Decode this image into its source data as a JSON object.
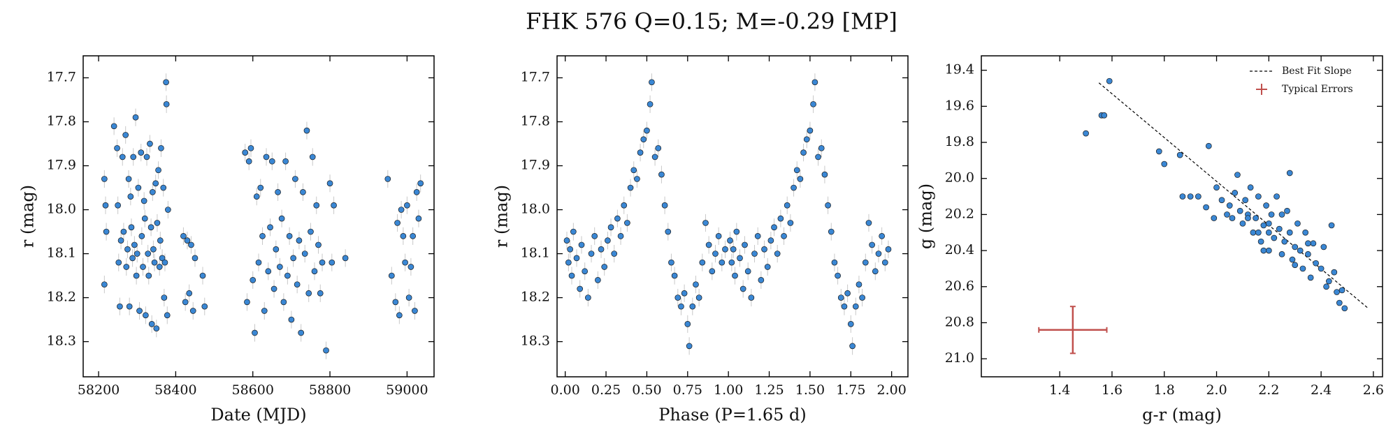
{
  "title": "FHK 576  Q=0.15; M=-0.29 [MP]",
  "chart_data": [
    {
      "type": "scatter",
      "xlabel": "Date (MJD)",
      "ylabel": "r (mag)",
      "color": "#3a87d4",
      "y_inverted": true,
      "yerr": 0.02,
      "error_color": "#c8c8c8",
      "xlim": [
        58160,
        59070
      ],
      "ylim": [
        17.65,
        18.38
      ],
      "xticks": [
        58200,
        58400,
        58600,
        58800,
        59000
      ],
      "yticks": [
        17.7,
        17.8,
        17.9,
        {
          "value": 18.0,
          "label": "18.0"
        },
        18.1,
        18.2,
        18.3
      ],
      "x": [
        58215,
        58218,
        58220,
        58215,
        58240,
        58248,
        58250,
        58252,
        58255,
        58258,
        58262,
        58265,
        58270,
        58272,
        58275,
        58278,
        58280,
        58283,
        58285,
        58288,
        58290,
        58293,
        58296,
        58298,
        58300,
        58303,
        58306,
        58310,
        58312,
        58315,
        58318,
        58320,
        58322,
        58325,
        58328,
        58330,
        58333,
        58336,
        58338,
        58340,
        58342,
        58345,
        58348,
        58350,
        58352,
        58355,
        58358,
        58360,
        58362,
        58365,
        58368,
        58370,
        58372,
        58375,
        58376,
        58378,
        58380,
        58420,
        58425,
        58430,
        58435,
        58440,
        58445,
        58450,
        58470,
        58475,
        58580,
        58585,
        58590,
        58595,
        58600,
        58605,
        58610,
        58615,
        58620,
        58625,
        58630,
        58635,
        58640,
        58645,
        58650,
        58655,
        58660,
        58665,
        58670,
        58675,
        58680,
        58685,
        58690,
        58695,
        58700,
        58705,
        58710,
        58715,
        58720,
        58725,
        58730,
        58735,
        58740,
        58745,
        58750,
        58755,
        58760,
        58765,
        58770,
        58775,
        58780,
        58790,
        58800,
        58805,
        58810,
        58840,
        58950,
        58960,
        58970,
        58975,
        58980,
        58985,
        58990,
        58995,
        59000,
        59005,
        59010,
        59015,
        59020,
        59025,
        59030,
        59035
      ],
      "values": [
        17.93,
        17.99,
        18.05,
        18.17,
        17.81,
        17.86,
        17.99,
        18.12,
        18.22,
        18.07,
        17.88,
        18.05,
        17.83,
        18.13,
        18.09,
        17.93,
        18.22,
        17.97,
        18.04,
        18.11,
        17.88,
        18.08,
        17.79,
        18.15,
        18.1,
        17.95,
        18.23,
        17.87,
        18.06,
        18.13,
        17.98,
        18.02,
        18.24,
        17.88,
        18.1,
        18.15,
        17.85,
        18.04,
        18.26,
        17.96,
        18.09,
        18.12,
        17.94,
        18.27,
        18.03,
        17.91,
        18.13,
        18.07,
        17.86,
        18.11,
        17.95,
        18.2,
        18.12,
        17.71,
        17.76,
        18.24,
        18.0,
        18.06,
        18.21,
        18.07,
        18.19,
        18.08,
        18.23,
        18.11,
        18.15,
        18.22,
        17.87,
        18.21,
        17.89,
        17.86,
        18.16,
        18.28,
        17.97,
        18.12,
        17.95,
        18.06,
        18.23,
        17.88,
        18.14,
        18.04,
        17.89,
        18.18,
        18.09,
        17.96,
        18.13,
        18.02,
        18.21,
        17.89,
        18.15,
        18.06,
        18.25,
        18.11,
        17.93,
        18.17,
        18.07,
        18.28,
        17.96,
        18.1,
        17.82,
        18.19,
        18.05,
        17.88,
        18.14,
        17.99,
        18.08,
        18.19,
        18.12,
        18.32,
        17.94,
        18.12,
        17.99,
        18.11,
        17.93,
        18.15,
        18.21,
        18.03,
        18.24,
        18.0,
        18.06,
        18.12,
        17.99,
        18.2,
        18.13,
        18.06,
        18.23,
        17.96,
        18.02,
        17.94
      ]
    },
    {
      "type": "scatter",
      "xlabel": "Phase (P=1.65 d)",
      "ylabel": "r (mag)",
      "color": "#3a87d4",
      "y_inverted": true,
      "yerr": 0.02,
      "error_color": "#c8c8c8",
      "xlim": [
        -0.05,
        2.1
      ],
      "ylim": [
        17.65,
        18.38
      ],
      "xticks": [
        {
          "value": 0,
          "label": "0.00"
        },
        0.25,
        {
          "value": 0.5,
          "label": "0.50"
        },
        0.75,
        {
          "value": 1,
          "label": "1.00"
        },
        1.25,
        {
          "value": 1.5,
          "label": "1.50"
        },
        1.75,
        {
          "value": 2,
          "label": "2.00"
        }
      ],
      "yticks": [
        17.7,
        17.8,
        17.9,
        {
          "value": 18.0,
          "label": "18.0"
        },
        18.1,
        18.2,
        18.3
      ],
      "x": [
        0.01,
        0.02,
        0.03,
        0.04,
        0.05,
        0.07,
        0.09,
        0.1,
        0.12,
        0.14,
        0.16,
        0.18,
        0.2,
        0.22,
        0.24,
        0.26,
        0.28,
        0.3,
        0.32,
        0.34,
        0.36,
        0.38,
        0.4,
        0.42,
        0.44,
        0.46,
        0.48,
        0.5,
        0.52,
        0.53,
        0.55,
        0.57,
        0.59,
        0.61,
        0.63,
        0.65,
        0.67,
        0.69,
        0.71,
        0.73,
        0.75,
        0.76,
        0.78,
        0.8,
        0.82,
        0.84,
        0.86,
        0.88,
        0.9,
        0.92,
        0.94,
        0.96,
        0.98,
        1.01,
        1.02,
        1.03,
        1.04,
        1.05,
        1.07,
        1.09,
        1.1,
        1.12,
        1.14,
        1.16,
        1.18,
        1.2,
        1.22,
        1.24,
        1.26,
        1.28,
        1.3,
        1.32,
        1.34,
        1.36,
        1.38,
        1.4,
        1.42,
        1.44,
        1.46,
        1.48,
        1.5,
        1.52,
        1.53,
        1.55,
        1.57,
        1.59,
        1.61,
        1.63,
        1.65,
        1.67,
        1.69,
        1.71,
        1.73,
        1.75,
        1.76,
        1.78,
        1.8,
        1.82,
        1.84,
        1.86,
        1.88,
        1.9,
        1.92,
        1.94,
        1.96,
        1.98
      ],
      "values": [
        18.07,
        18.12,
        18.09,
        18.15,
        18.05,
        18.11,
        18.18,
        18.08,
        18.14,
        18.2,
        18.1,
        18.06,
        18.16,
        18.09,
        18.13,
        18.07,
        18.04,
        18.1,
        18.02,
        18.06,
        17.99,
        18.03,
        17.95,
        17.91,
        17.93,
        17.87,
        17.84,
        17.82,
        17.76,
        17.71,
        17.88,
        17.86,
        17.92,
        17.99,
        18.05,
        18.12,
        18.15,
        18.2,
        18.22,
        18.19,
        18.26,
        18.31,
        18.22,
        18.17,
        18.2,
        18.12,
        18.03,
        18.08,
        18.14,
        18.1,
        18.06,
        18.12,
        18.09,
        18.07,
        18.12,
        18.09,
        18.15,
        18.05,
        18.11,
        18.18,
        18.08,
        18.14,
        18.2,
        18.1,
        18.06,
        18.16,
        18.09,
        18.13,
        18.07,
        18.04,
        18.1,
        18.02,
        18.06,
        17.99,
        18.03,
        17.95,
        17.91,
        17.93,
        17.87,
        17.84,
        17.82,
        17.76,
        17.71,
        17.88,
        17.86,
        17.92,
        17.99,
        18.05,
        18.12,
        18.15,
        18.2,
        18.22,
        18.19,
        18.26,
        18.31,
        18.22,
        18.17,
        18.2,
        18.12,
        18.03,
        18.08,
        18.14,
        18.1,
        18.06,
        18.12,
        18.09
      ]
    },
    {
      "type": "scatter",
      "xlabel": "g-r (mag)",
      "ylabel": "g (mag)",
      "color": "#3a87d4",
      "y_inverted": true,
      "legend": "upper right",
      "xlim": [
        1.1,
        2.635
      ],
      "ylim": [
        19.32,
        21.1
      ],
      "xticks": [
        1.4,
        1.6,
        1.8,
        {
          "value": 2.0,
          "label": "2.0"
        },
        2.2,
        2.4,
        2.6
      ],
      "yticks": [
        19.4,
        19.6,
        19.8,
        {
          "value": 20.0,
          "label": "20.0"
        },
        20.2,
        20.4,
        20.6,
        20.8,
        {
          "value": 21.0,
          "label": "21.0"
        }
      ],
      "x": [
        1.5,
        1.56,
        1.57,
        1.59,
        1.78,
        1.8,
        1.86,
        1.87,
        1.9,
        1.93,
        1.96,
        1.97,
        1.99,
        2.0,
        2.02,
        2.04,
        2.05,
        2.06,
        2.07,
        2.08,
        2.09,
        2.1,
        2.11,
        2.12,
        2.13,
        2.14,
        2.15,
        2.16,
        2.17,
        2.18,
        2.19,
        2.2,
        2.2,
        2.21,
        2.22,
        2.23,
        2.24,
        2.25,
        2.26,
        2.27,
        2.28,
        2.28,
        2.29,
        2.3,
        2.31,
        2.32,
        2.33,
        2.34,
        2.35,
        2.36,
        2.37,
        2.38,
        2.4,
        2.41,
        2.42,
        2.43,
        2.44,
        2.45,
        2.46,
        2.47,
        2.48,
        2.49,
        2.12,
        2.18,
        2.25,
        2.3,
        2.2,
        2.35,
        2.16
      ],
      "values": [
        19.75,
        19.65,
        19.65,
        19.46,
        19.85,
        19.92,
        19.87,
        20.1,
        20.1,
        20.1,
        20.16,
        19.82,
        20.22,
        20.05,
        20.12,
        20.2,
        20.15,
        20.22,
        20.08,
        19.98,
        20.18,
        20.25,
        20.12,
        20.2,
        20.05,
        20.3,
        20.22,
        20.1,
        20.35,
        20.26,
        20.15,
        20.3,
        20.4,
        20.2,
        20.33,
        20.1,
        20.28,
        20.42,
        20.35,
        20.18,
        19.97,
        20.3,
        20.45,
        20.38,
        20.25,
        20.4,
        20.5,
        20.3,
        20.42,
        20.55,
        20.36,
        20.47,
        20.5,
        20.38,
        20.6,
        20.57,
        20.26,
        20.52,
        20.63,
        20.69,
        20.62,
        20.72,
        20.22,
        20.4,
        20.2,
        20.48,
        20.25,
        20.36,
        20.3
      ],
      "fit_line": {
        "name": "Best Fit Slope",
        "color": "#000000",
        "x": [
          1.55,
          2.58
        ],
        "values": [
          19.47,
          20.72
        ]
      },
      "errorbar": {
        "name": "Typical Errors",
        "color": "#c0504d",
        "x": 1.45,
        "y": 20.84,
        "xerr": 0.13,
        "yerr": 0.13
      }
    }
  ]
}
